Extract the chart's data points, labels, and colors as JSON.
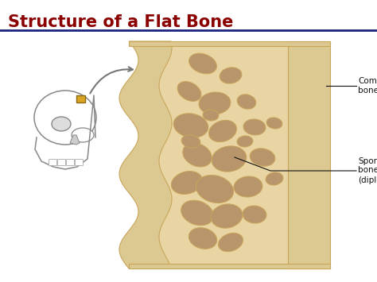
{
  "title": "Structure of a Flat Bone",
  "title_color": "#8B0000",
  "title_fontsize": 15,
  "title_fontweight": "bold",
  "bg_color": "#FFFFFF",
  "separator_color": "#1a237e",
  "label_compact_bone": "Compact\nbone",
  "label_spongy_bone": "Spongy\nbone\n(diploé)",
  "bone_color_light": "#E8D5A3",
  "bone_color_mid": "#D4B87A",
  "bone_color_dark": "#C9A55A",
  "hole_color": "#B8956A",
  "compact_color": "#DCC891",
  "skull_color": "#888888",
  "annotation_color": "#111111",
  "annotation_fontsize": 7.5,
  "holes": [
    [
      255,
      80,
      18,
      12,
      20
    ],
    [
      290,
      95,
      14,
      10,
      -10
    ],
    [
      238,
      115,
      16,
      11,
      30
    ],
    [
      270,
      130,
      20,
      14,
      -5
    ],
    [
      310,
      128,
      12,
      9,
      15
    ],
    [
      240,
      158,
      22,
      15,
      10
    ],
    [
      280,
      165,
      18,
      13,
      -20
    ],
    [
      320,
      160,
      14,
      10,
      5
    ],
    [
      248,
      195,
      19,
      14,
      25
    ],
    [
      288,
      200,
      22,
      16,
      -10
    ],
    [
      330,
      198,
      16,
      11,
      10
    ],
    [
      235,
      230,
      20,
      14,
      -15
    ],
    [
      270,
      238,
      24,
      17,
      15
    ],
    [
      312,
      235,
      18,
      13,
      -5
    ],
    [
      248,
      268,
      21,
      15,
      20
    ],
    [
      285,
      272,
      20,
      15,
      -10
    ],
    [
      320,
      270,
      15,
      11,
      5
    ],
    [
      255,
      300,
      18,
      13,
      15
    ],
    [
      290,
      305,
      16,
      11,
      -20
    ],
    [
      240,
      178,
      12,
      8,
      10
    ],
    [
      308,
      178,
      10,
      7,
      -5
    ],
    [
      345,
      155,
      10,
      7,
      10
    ],
    [
      345,
      225,
      11,
      8,
      -10
    ],
    [
      265,
      145,
      10,
      7,
      5
    ]
  ]
}
